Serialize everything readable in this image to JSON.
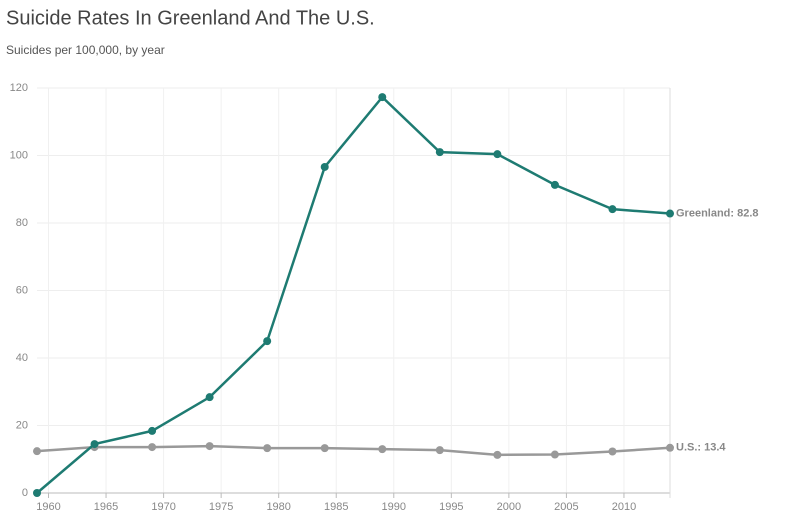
{
  "chart_data": {
    "type": "line",
    "title": "Suicide Rates In Greenland And The U.S.",
    "subtitle": "Suicides per 100,000, by year",
    "x": [
      1959,
      1964,
      1969,
      1974,
      1979,
      1984,
      1989,
      1994,
      1999,
      2004,
      2009,
      2014
    ],
    "series": [
      {
        "name": "Greenland",
        "color": "#1e7b72",
        "end_label": "Greenland: 82.8",
        "values": [
          0,
          14.5,
          18.4,
          28.4,
          45,
          96.6,
          117.3,
          101,
          100.4,
          91.3,
          84.1,
          82.8
        ]
      },
      {
        "name": "U.S.",
        "color": "#999999",
        "end_label": "U.S.: 13.4",
        "values": [
          12.4,
          13.6,
          13.6,
          13.9,
          13.3,
          13.3,
          13.0,
          12.7,
          11.3,
          11.4,
          12.3,
          13.4
        ]
      }
    ],
    "xlim": [
      1959,
      2014
    ],
    "xticks": [
      1960,
      1965,
      1970,
      1975,
      1980,
      1985,
      1990,
      1995,
      2000,
      2005,
      2010
    ],
    "ylim": [
      0,
      120
    ],
    "yticks": [
      0,
      20,
      40,
      60,
      80,
      100,
      120
    ],
    "grid": true
  }
}
